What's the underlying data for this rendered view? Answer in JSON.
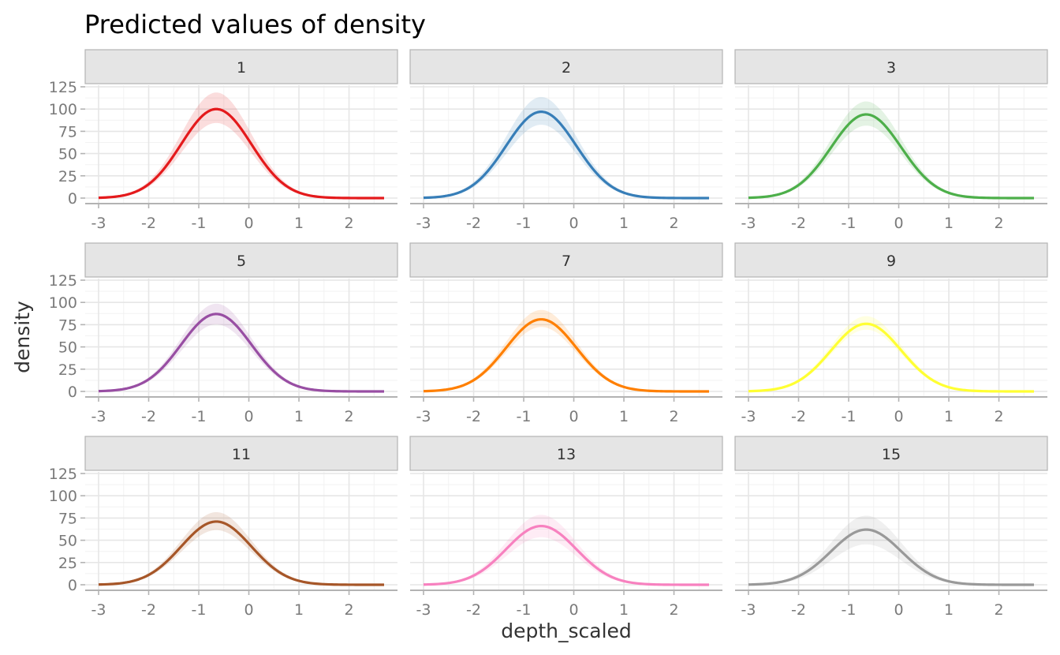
{
  "chart_data": {
    "type": "line",
    "title": "Predicted values of density",
    "xlabel": "depth_scaled",
    "ylabel": "density",
    "xlim": [
      -3,
      2.7
    ],
    "ylim": [
      0,
      125
    ],
    "x_ticks": [
      -3,
      -2,
      -1,
      0,
      1,
      2
    ],
    "x_tick_labels": [
      "-3",
      "-2",
      "-1",
      "0",
      "1",
      "2"
    ],
    "y_ticks": [
      0,
      25,
      50,
      75,
      100,
      125
    ],
    "y_tick_labels": [
      "0",
      "25",
      "50",
      "75",
      "100",
      "125"
    ],
    "grid": true,
    "legend": "none",
    "curve_shape": "gaussian",
    "peak_x": -0.65,
    "spread_sd": 0.7,
    "panels": [
      {
        "label": "1",
        "color": "#E41A1C",
        "peak": 100,
        "ci_low": 85,
        "ci_high": 118
      },
      {
        "label": "2",
        "color": "#377EB8",
        "peak": 97,
        "ci_low": 83,
        "ci_high": 113
      },
      {
        "label": "3",
        "color": "#4DAF4A",
        "peak": 94,
        "ci_low": 82,
        "ci_high": 108
      },
      {
        "label": "5",
        "color": "#984EA3",
        "peak": 87,
        "ci_low": 76,
        "ci_high": 98
      },
      {
        "label": "7",
        "color": "#FF7F00",
        "peak": 81,
        "ci_low": 73,
        "ci_high": 91
      },
      {
        "label": "9",
        "color": "#FFFF33",
        "peak": 76,
        "ci_low": 70,
        "ci_high": 84
      },
      {
        "label": "11",
        "color": "#A65628",
        "peak": 71,
        "ci_low": 62,
        "ci_high": 81
      },
      {
        "label": "13",
        "color": "#F781BF",
        "peak": 66,
        "ci_low": 54,
        "ci_high": 78
      },
      {
        "label": "15",
        "color": "#999999",
        "peak": 62,
        "ci_low": 46,
        "ci_high": 77
      }
    ]
  }
}
